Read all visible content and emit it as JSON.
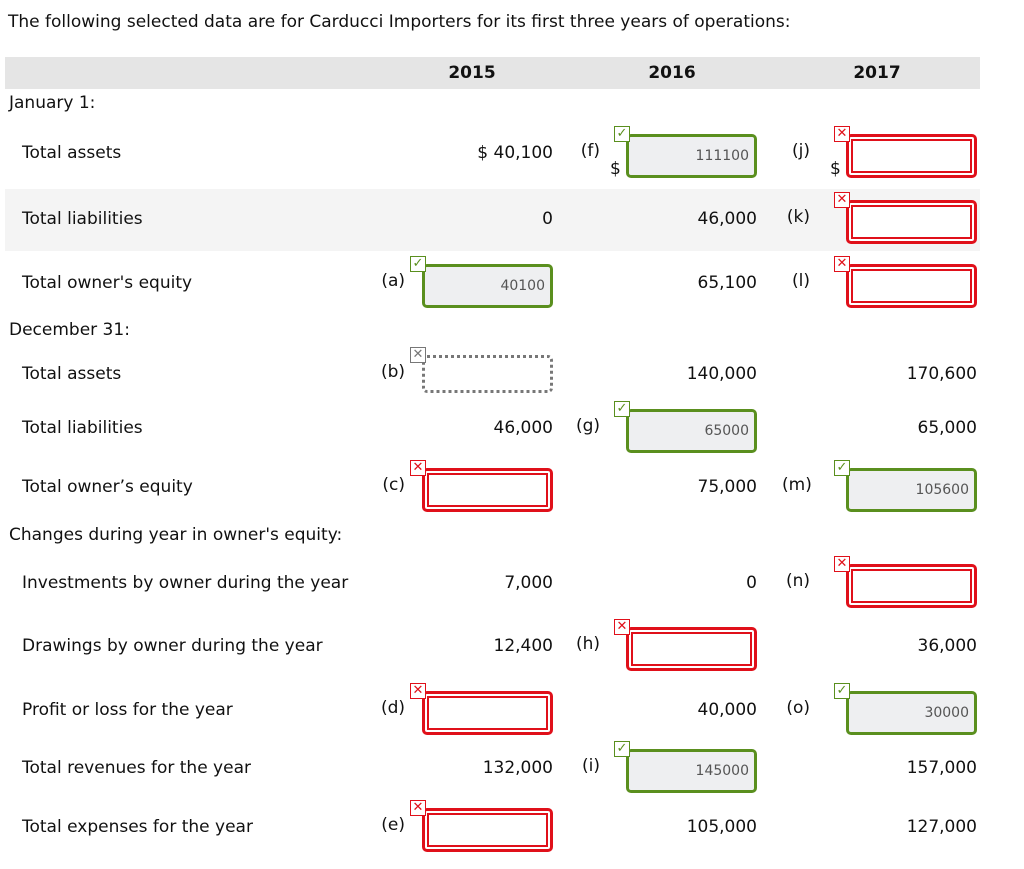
{
  "title": "The following selected data are for Carducci Importers for its first three years of operations:",
  "years": [
    "2015",
    "2016",
    "2017"
  ],
  "colors": {
    "correct": "#5a8f1e",
    "wrong": "#e0101a",
    "header_bg": "#e5e5e5"
  },
  "sections": [
    {
      "label": "January 1:",
      "rows": [
        {
          "label": "Total assets",
          "shaded": false,
          "cells": [
            {
              "type": "value",
              "text": "$ 40,100"
            },
            {
              "type": "input",
              "letter": "(f)",
              "dollar": "$",
              "value": "111100",
              "status": "correct"
            },
            {
              "type": "input",
              "letter": "(j)",
              "dollar": "$",
              "value": "",
              "status": "wrong"
            }
          ]
        },
        {
          "label": "Total liabilities",
          "shaded": true,
          "cells": [
            {
              "type": "value",
              "text": "0"
            },
            {
              "type": "value",
              "text": "46,000"
            },
            {
              "type": "input",
              "letter": "(k)",
              "value": "",
              "status": "wrong"
            }
          ]
        },
        {
          "label": "Total owner's equity",
          "shaded": false,
          "cells": [
            {
              "type": "input",
              "letter": "(a)",
              "value": "40100",
              "status": "correct"
            },
            {
              "type": "value",
              "text": "65,100"
            },
            {
              "type": "input",
              "letter": "(l)",
              "value": "",
              "status": "wrong"
            }
          ]
        }
      ]
    },
    {
      "label": "December 31:",
      "rows": [
        {
          "label": "Total assets",
          "cells": [
            {
              "type": "input",
              "letter": "(b)",
              "value": "",
              "status": "blank"
            },
            {
              "type": "value",
              "text": "140,000"
            },
            {
              "type": "value",
              "text": "170,600"
            }
          ]
        },
        {
          "label": "Total liabilities",
          "cells": [
            {
              "type": "value",
              "text": "46,000"
            },
            {
              "type": "input",
              "letter": "(g)",
              "value": "65000",
              "status": "correct"
            },
            {
              "type": "value",
              "text": "65,000"
            }
          ]
        },
        {
          "label": "Total owner’s equity",
          "cells": [
            {
              "type": "input",
              "letter": "(c)",
              "value": "",
              "status": "wrong"
            },
            {
              "type": "value",
              "text": "75,000"
            },
            {
              "type": "input",
              "letter": "(m)",
              "value": "105600",
              "status": "correct"
            }
          ]
        }
      ]
    },
    {
      "label": "Changes during year in owner's equity:",
      "rows": [
        {
          "label": "Investments by owner during the year",
          "cells": [
            {
              "type": "value",
              "text": "7,000"
            },
            {
              "type": "value",
              "text": "0"
            },
            {
              "type": "input",
              "letter": "(n)",
              "value": "",
              "status": "wrong"
            }
          ]
        },
        {
          "label": "Drawings by owner during the year",
          "cells": [
            {
              "type": "value",
              "text": "12,400"
            },
            {
              "type": "input",
              "letter": "(h)",
              "value": "",
              "status": "wrong"
            },
            {
              "type": "value",
              "text": "36,000"
            }
          ]
        },
        {
          "label": "Profit or loss for the year",
          "cells": [
            {
              "type": "input",
              "letter": "(d)",
              "value": "",
              "status": "wrong"
            },
            {
              "type": "value",
              "text": "40,000"
            },
            {
              "type": "input",
              "letter": "(o)",
              "value": "30000",
              "status": "correct"
            }
          ]
        },
        {
          "label": "Total revenues for the year",
          "cells": [
            {
              "type": "value",
              "text": "132,000"
            },
            {
              "type": "input",
              "letter": "(i)",
              "value": "145000",
              "status": "correct"
            },
            {
              "type": "value",
              "text": "157,000"
            }
          ]
        },
        {
          "label": "Total expenses for the year",
          "cells": [
            {
              "type": "input",
              "letter": "(e)",
              "value": "",
              "status": "wrong"
            },
            {
              "type": "value",
              "text": "105,000"
            },
            {
              "type": "value",
              "text": "127,000"
            }
          ]
        }
      ]
    }
  ]
}
